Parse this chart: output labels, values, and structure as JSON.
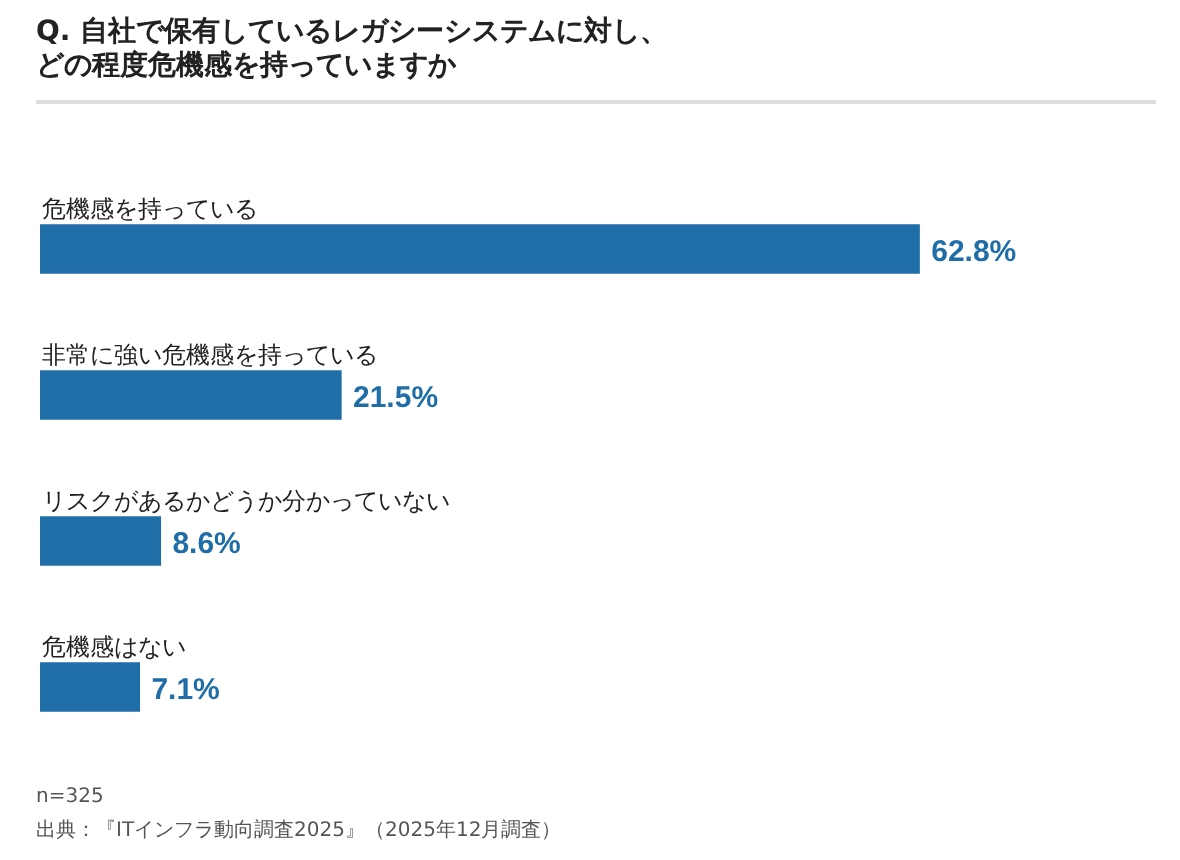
{
  "chart_data": {
    "type": "bar",
    "orientation": "horizontal",
    "title": "Q. 自社で保有しているレガシーシステムに対し、",
    "subtitle": "どの程度危機感を持っていますか",
    "categories": [
      "危機感を持っている",
      "非常に強い危機感を持っている",
      "リスクがあるかどうか分かっていない",
      "危機感はない"
    ],
    "values": [
      62.8,
      21.5,
      8.6,
      7.1
    ],
    "value_labels": [
      "62.8%",
      "21.5%",
      "8.6%",
      "7.1%"
    ],
    "color": "#1f6ea8",
    "legend": false,
    "annotations": [
      "n=325",
      "出典：『ITインフラ動向調査2025』（2025年12月調査）"
    ]
  }
}
